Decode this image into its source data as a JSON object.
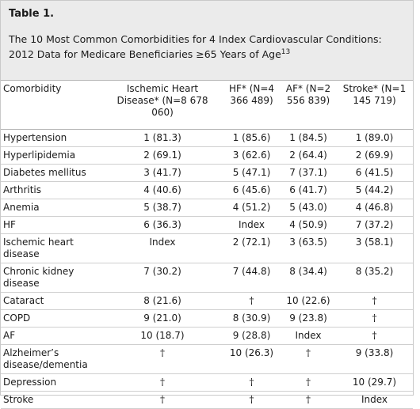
{
  "caption": {
    "label": "Table 1.",
    "line1": "The 10 Most Common Comorbidities for 4 Index Cardiovascular Conditions:",
    "line2": "2012 Data for Medicare Beneficiaries ≥65 Years of Age",
    "ref": "13"
  },
  "table": {
    "headers": [
      "Comorbidity",
      "Ischemic Heart Disease* (N=8 678 060)",
      "HF* (N=4 366 489)",
      "AF* (N=2 556 839)",
      "Stroke* (N=1 145 719)"
    ],
    "rows": [
      {
        "name": "Hypertension",
        "ihd": "1 (81.3)",
        "hf": "1 (85.6)",
        "af": "1 (84.5)",
        "stroke": "1 (89.0)"
      },
      {
        "name": "Hyperlipidemia",
        "ihd": "2 (69.1)",
        "hf": "3 (62.6)",
        "af": "2 (64.4)",
        "stroke": "2 (69.9)"
      },
      {
        "name": "Diabetes mellitus",
        "ihd": "3 (41.7)",
        "hf": "5 (47.1)",
        "af": "7 (37.1)",
        "stroke": "6 (41.5)"
      },
      {
        "name": "Arthritis",
        "ihd": "4 (40.6)",
        "hf": "6 (45.6)",
        "af": "6 (41.7)",
        "stroke": "5 (44.2)"
      },
      {
        "name": "Anemia",
        "ihd": "5 (38.7)",
        "hf": "4 (51.2)",
        "af": "5 (43.0)",
        "stroke": "4 (46.8)"
      },
      {
        "name": "HF",
        "ihd": "6 (36.3)",
        "hf": "Index",
        "af": "4 (50.9)",
        "stroke": "7 (37.2)"
      },
      {
        "name": "Ischemic heart disease",
        "ihd": "Index",
        "hf": "2 (72.1)",
        "af": "3 (63.5)",
        "stroke": "3 (58.1)"
      },
      {
        "name": "Chronic kidney disease",
        "ihd": "7 (30.2)",
        "hf": "7 (44.8)",
        "af": "8 (34.4)",
        "stroke": "8 (35.2)"
      },
      {
        "name": "Cataract",
        "ihd": "8 (21.6)",
        "hf": "†",
        "af": "10 (22.6)",
        "stroke": "†"
      },
      {
        "name": "COPD",
        "ihd": "9 (21.0)",
        "hf": "8 (30.9)",
        "af": "9 (23.8)",
        "stroke": "†"
      },
      {
        "name": "AF",
        "ihd": "10 (18.7)",
        "hf": "9 (28.8)",
        "af": "Index",
        "stroke": "†"
      },
      {
        "name": "Alzheimer’s disease/dementia",
        "ihd": "†",
        "hf": "10 (26.3)",
        "af": "†",
        "stroke": "9 (33.8)"
      },
      {
        "name": "Depression",
        "ihd": "†",
        "hf": "†",
        "af": "†",
        "stroke": "10 (29.7)"
      },
      {
        "name": "Stroke",
        "ihd": "†",
        "hf": "†",
        "af": "†",
        "stroke": "Index"
      }
    ]
  }
}
